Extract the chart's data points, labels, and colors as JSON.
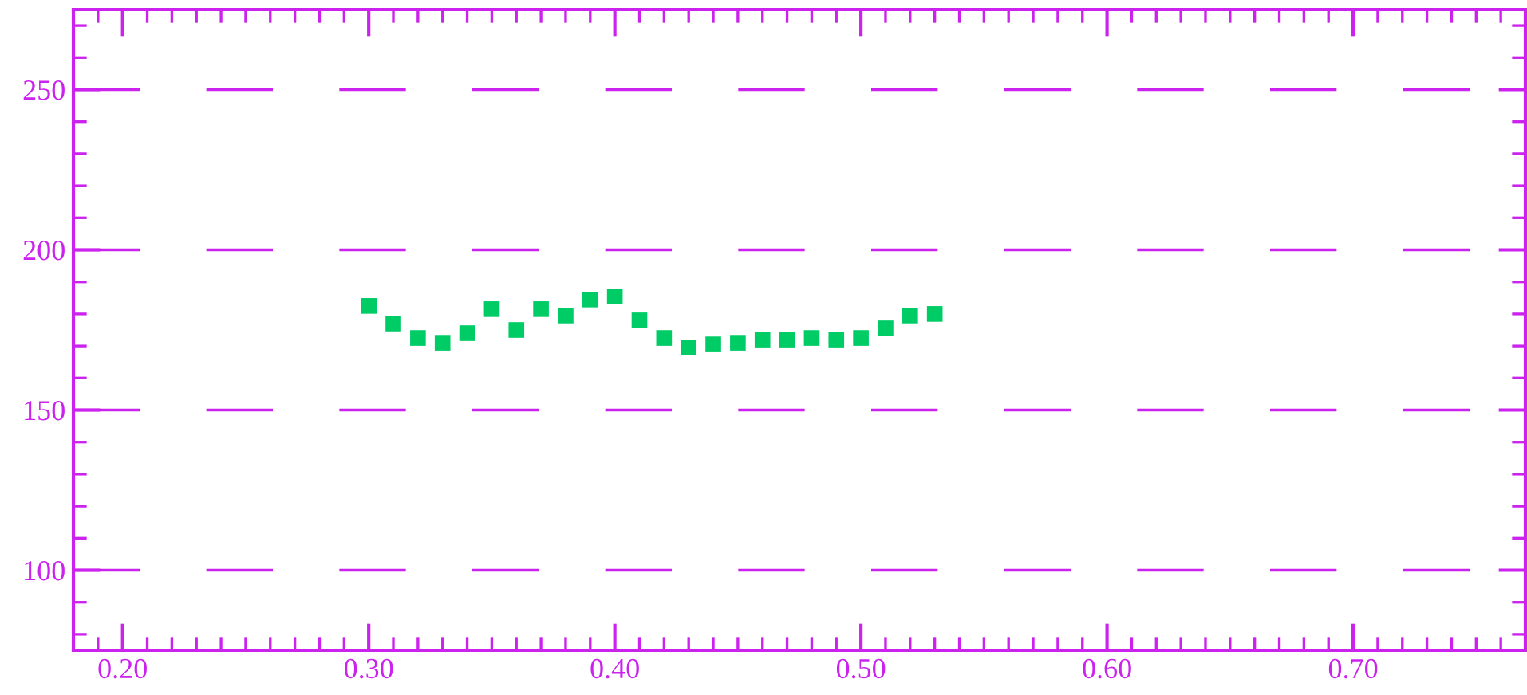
{
  "chart_data": {
    "type": "scatter",
    "marker": "square",
    "grid": "y",
    "x": [
      0.3,
      0.31,
      0.32,
      0.33,
      0.34,
      0.35,
      0.36,
      0.37,
      0.38,
      0.39,
      0.4,
      0.41,
      0.42,
      0.43,
      0.44,
      0.45,
      0.46,
      0.47,
      0.48,
      0.49,
      0.5,
      0.51,
      0.52,
      0.53
    ],
    "series": [
      {
        "color": "#00cc66",
        "values": [
          182.5,
          177,
          172.5,
          171,
          174,
          181.5,
          175,
          181.5,
          179.5,
          184.5,
          185.5,
          178,
          172.5,
          169.5,
          170.5,
          171,
          172,
          172,
          172.5,
          172,
          172.5,
          175.5,
          179.5,
          180
        ]
      }
    ],
    "xlim": [
      0.18,
      0.77
    ],
    "ylim": [
      75,
      275
    ],
    "xticks": [
      {
        "value": 0.2,
        "label": "0.20"
      },
      {
        "value": 0.3,
        "label": "0.30"
      },
      {
        "value": 0.4,
        "label": "0.40"
      },
      {
        "value": 0.5,
        "label": "0.50"
      },
      {
        "value": 0.6,
        "label": "0.60"
      },
      {
        "value": 0.7,
        "label": "0.70"
      }
    ],
    "yticks": [
      100,
      150,
      200,
      250
    ]
  }
}
